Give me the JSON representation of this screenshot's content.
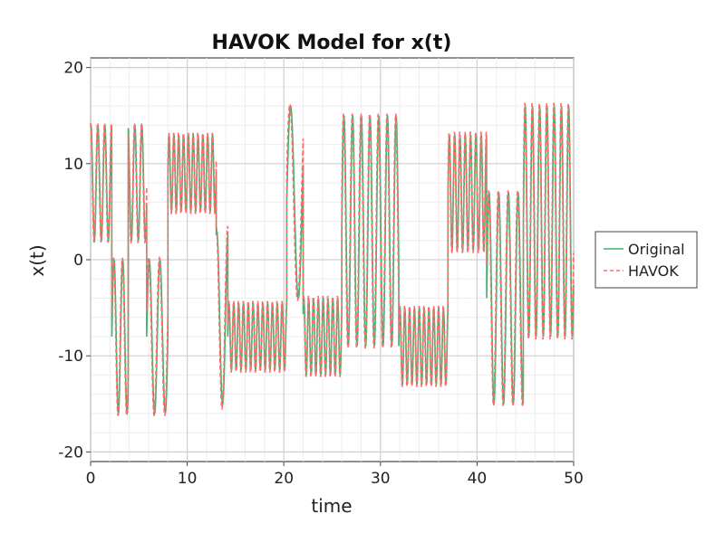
{
  "chart_data": {
    "type": "line",
    "title": "HAVOK Model for x(t)",
    "xlabel": "time",
    "ylabel": "x(t)",
    "xlim": [
      0,
      50
    ],
    "ylim": [
      -21,
      21
    ],
    "x_ticks": [
      0,
      10,
      20,
      30,
      40,
      50
    ],
    "y_ticks": [
      20,
      10,
      0,
      -10,
      -20
    ],
    "x_tick_labels": [
      "0",
      "10",
      "20",
      "30",
      "40",
      "50"
    ],
    "y_tick_labels": [
      "20",
      "10",
      "0",
      "-10",
      "-20"
    ],
    "grid": true,
    "legend_position": "right",
    "series": [
      {
        "name": "Original",
        "color": "#3cb371",
        "style": "solid",
        "segments": [
          {
            "x0": 0.0,
            "x1": 2.2,
            "center": 8,
            "amp": 6,
            "period": 0.72,
            "phase": 0.2
          },
          {
            "x0": 2.2,
            "x1": 3.9,
            "center": -8,
            "amp": 8,
            "period": 0.9,
            "phase": 0.0
          },
          {
            "x0": 3.9,
            "x1": 5.8,
            "center": 8,
            "amp": 6,
            "period": 0.72,
            "phase": 0.3
          },
          {
            "x0": 5.8,
            "x1": 8.0,
            "center": -8,
            "amp": 8,
            "period": 1.1,
            "phase": 0.0
          },
          {
            "x0": 8.0,
            "x1": 13.0,
            "center": 9,
            "amp": 4,
            "period": 0.5,
            "phase": 0.0
          },
          {
            "x0": 13.0,
            "x1": 14.2,
            "center": -6,
            "amp": 9,
            "period": 1.2,
            "phase": 0.2
          },
          {
            "x0": 14.2,
            "x1": 20.3,
            "center": -8,
            "amp": 3.5,
            "period": 0.5,
            "phase": 0.0
          },
          {
            "x0": 20.3,
            "x1": 22.0,
            "center": 6,
            "amp": 10,
            "period": 1.6,
            "phase": 0.0
          },
          {
            "x0": 22.0,
            "x1": 26.0,
            "center": -8,
            "amp": 4,
            "period": 0.5,
            "phase": 0.1
          },
          {
            "x0": 26.0,
            "x1": 31.9,
            "center": 3,
            "amp": 12,
            "period": 0.9,
            "phase": 0.0
          },
          {
            "x0": 31.9,
            "x1": 37.0,
            "center": -9,
            "amp": 4,
            "period": 0.5,
            "phase": 0.0
          },
          {
            "x0": 37.0,
            "x1": 41.0,
            "center": 7,
            "amp": 6,
            "period": 0.55,
            "phase": 0.0
          },
          {
            "x0": 41.0,
            "x1": 44.8,
            "center": -4,
            "amp": 11,
            "period": 1.0,
            "phase": 0.0
          },
          {
            "x0": 44.8,
            "x1": 50.0,
            "center": 4,
            "amp": 12,
            "period": 0.75,
            "phase": 0.0
          }
        ]
      },
      {
        "name": "HAVOK",
        "color": "#ff6b6b",
        "style": "dashed",
        "segments": [
          {
            "x0": 0.0,
            "x1": 2.2,
            "center": 8,
            "amp": 6.2,
            "period": 0.72,
            "phase": 0.25
          },
          {
            "x0": 2.2,
            "x1": 3.9,
            "center": -8,
            "amp": 8.2,
            "period": 0.9,
            "phase": 0.05
          },
          {
            "x0": 3.9,
            "x1": 5.8,
            "center": 8,
            "amp": 6.2,
            "period": 0.72,
            "phase": 0.35
          },
          {
            "x0": 5.8,
            "x1": 8.0,
            "center": -8,
            "amp": 8.2,
            "period": 1.1,
            "phase": 0.05
          },
          {
            "x0": 8.0,
            "x1": 13.0,
            "center": 9,
            "amp": 4.2,
            "period": 0.5,
            "phase": 0.05
          },
          {
            "x0": 13.0,
            "x1": 14.2,
            "center": -6,
            "amp": 9.5,
            "period": 1.2,
            "phase": 0.25
          },
          {
            "x0": 14.2,
            "x1": 20.3,
            "center": -8,
            "amp": 3.7,
            "period": 0.5,
            "phase": 0.05
          },
          {
            "x0": 20.3,
            "x1": 22.0,
            "center": 6,
            "amp": 10.2,
            "period": 1.6,
            "phase": 0.05
          },
          {
            "x0": 22.0,
            "x1": 26.0,
            "center": -8,
            "amp": 4.2,
            "period": 0.5,
            "phase": 0.15
          },
          {
            "x0": 26.0,
            "x1": 31.9,
            "center": 3,
            "amp": 12.2,
            "period": 0.9,
            "phase": 0.05
          },
          {
            "x0": 31.9,
            "x1": 37.0,
            "center": -9,
            "amp": 4.2,
            "period": 0.5,
            "phase": 0.05
          },
          {
            "x0": 37.0,
            "x1": 41.0,
            "center": 7,
            "amp": 6.3,
            "period": 0.55,
            "phase": 0.05
          },
          {
            "x0": 41.0,
            "x1": 44.8,
            "center": -4,
            "amp": 11.2,
            "period": 1.0,
            "phase": 0.05
          },
          {
            "x0": 44.8,
            "x1": 50.0,
            "center": 4,
            "amp": 12.3,
            "period": 0.75,
            "phase": 0.05
          }
        ]
      }
    ]
  }
}
